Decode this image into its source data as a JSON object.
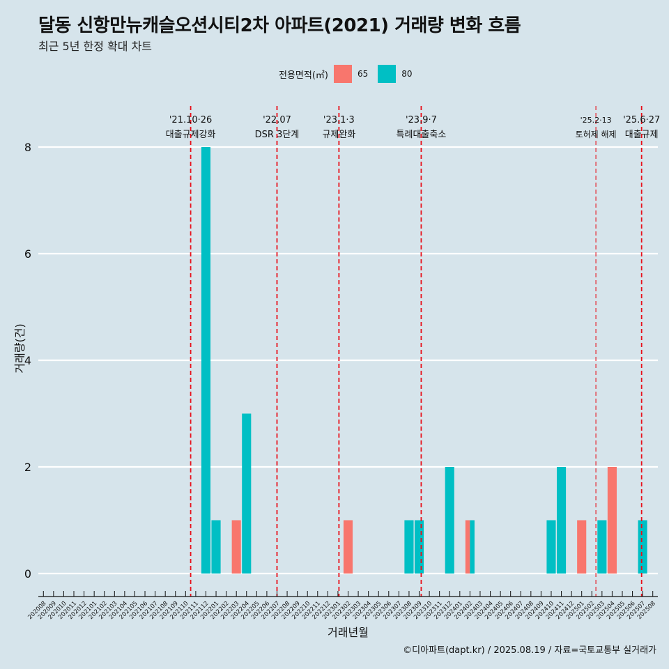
{
  "chart_data": {
    "type": "bar",
    "title": "달동 신항만뉴캐슬오션시티2차 아파트(2021) 거래량 변화 흐름",
    "subtitle": "최근 5년 한정 확대 차트",
    "xlabel": "거래년월",
    "ylabel": "거래량(건)",
    "ylim": [
      -0.3,
      8.8
    ],
    "yticks": [
      0,
      2,
      4,
      6,
      8
    ],
    "grid": true,
    "legend": {
      "title": "전용면적(㎡)",
      "position": "top",
      "entries": [
        "65",
        "80"
      ]
    },
    "categories": [
      "202008",
      "202009",
      "202010",
      "202011",
      "202012",
      "202101",
      "202102",
      "202103",
      "202104",
      "202105",
      "202106",
      "202107",
      "202108",
      "202109",
      "202110",
      "202111",
      "202112",
      "202201",
      "202202",
      "202203",
      "202204",
      "202205",
      "202206",
      "202207",
      "202208",
      "202209",
      "202210",
      "202211",
      "202212",
      "202301",
      "202302",
      "202303",
      "202304",
      "202305",
      "202306",
      "202307",
      "202308",
      "202309",
      "202310",
      "202311",
      "202312",
      "202401",
      "202402",
      "202403",
      "202404",
      "202405",
      "202406",
      "202407",
      "202408",
      "202409",
      "202410",
      "202411",
      "202412",
      "202501",
      "202502",
      "202503",
      "202504",
      "202505",
      "202506",
      "202507",
      "202508"
    ],
    "series": [
      {
        "name": "65",
        "color": "#f8766d",
        "points": [
          [
            "202203",
            1
          ],
          [
            "202302",
            1
          ],
          [
            "202402",
            1
          ],
          [
            "202501",
            1
          ],
          [
            "202504",
            2
          ]
        ]
      },
      {
        "name": "80",
        "color": "#00bfc4",
        "points": [
          [
            "202112",
            8
          ],
          [
            "202201",
            1
          ],
          [
            "202204",
            3
          ],
          [
            "202308",
            1
          ],
          [
            "202309",
            1
          ],
          [
            "202312",
            2
          ],
          [
            "202402",
            1
          ],
          [
            "202410",
            1
          ],
          [
            "202411",
            2
          ],
          [
            "202503",
            1
          ],
          [
            "202507",
            1
          ]
        ]
      }
    ],
    "events": [
      {
        "date": "'21.10·26",
        "label": "대출규제강화",
        "x": "202110.5",
        "bold": true
      },
      {
        "date": "'22.07",
        "label": "DSR 3단계",
        "x": "202207",
        "bold": true
      },
      {
        "date": "'23.1·3",
        "label": "규제완화",
        "x": "202301.1",
        "bold": true
      },
      {
        "date": "'23.9·7",
        "label": "특례대출축소",
        "x": "202309.2",
        "bold": true
      },
      {
        "date": "'25.2·13",
        "label": "토허제 해제",
        "x": "202502.4",
        "bold": false
      },
      {
        "date": "'25.6·27",
        "label": "대출규제",
        "x": "202506.9",
        "bold": true
      }
    ],
    "caption": "©디아파트(dapt.kr) / 2025.08.19 / 자료=국토교통부 실거래가"
  }
}
